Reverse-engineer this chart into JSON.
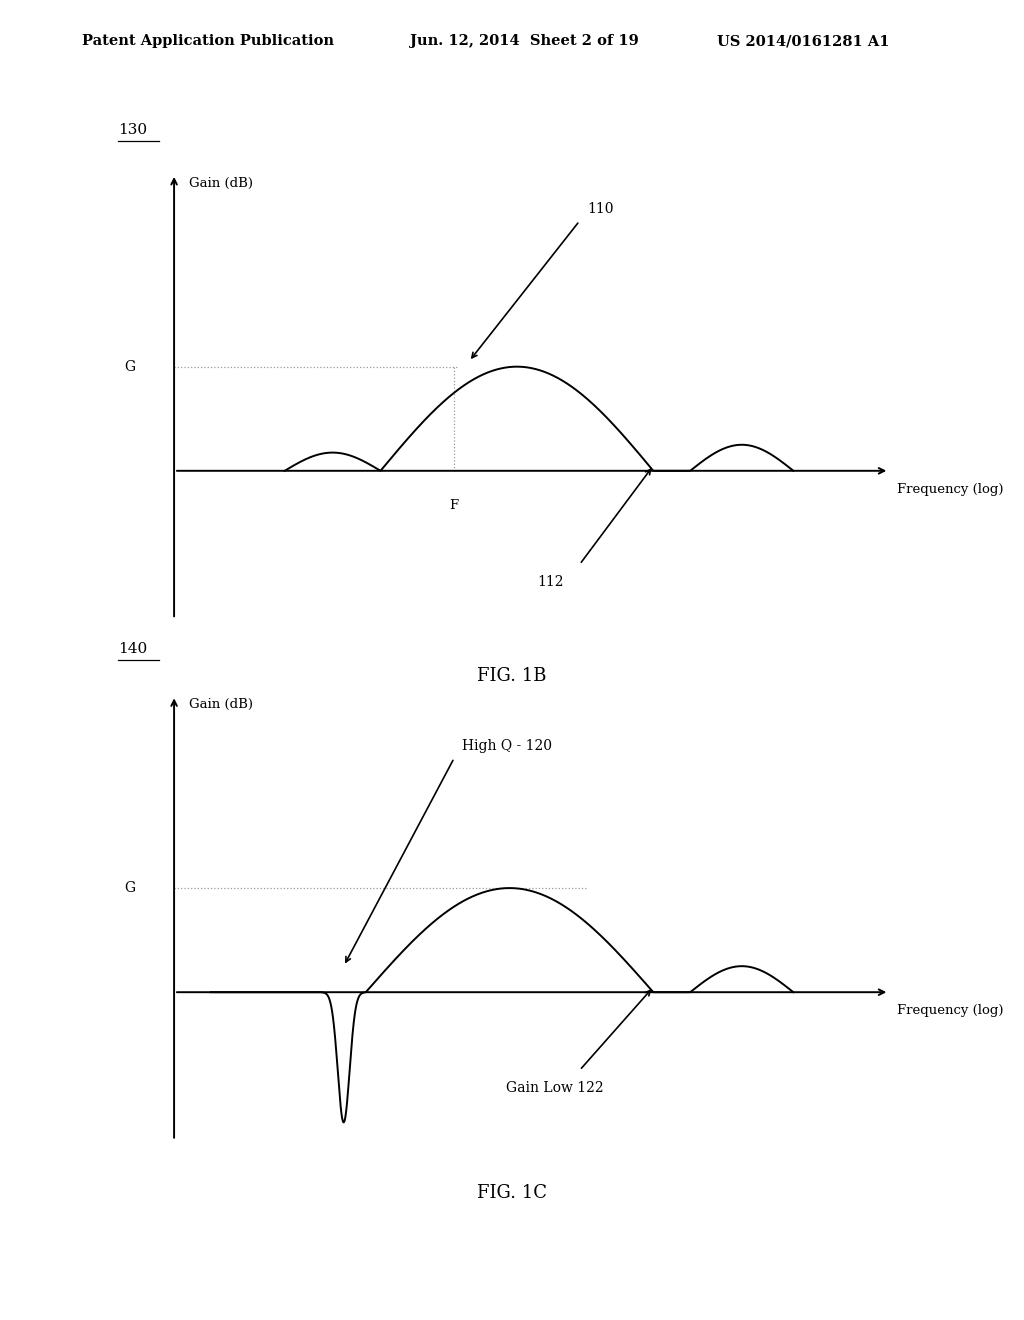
{
  "background_color": "#ffffff",
  "header_left": "Patent Application Publication",
  "header_mid": "Jun. 12, 2014  Sheet 2 of 19",
  "header_right": "US 2014/0161281 A1",
  "header_fontsize": 10.5,
  "fig1b_label": "130",
  "fig1b_caption": "FIG. 1B",
  "fig1c_label": "140",
  "fig1c_caption": "FIG. 1C",
  "ylabel": "Gain (dB)",
  "xlabel": "Frequency (log)",
  "G_label": "G",
  "F_label": "F",
  "label_110": "110",
  "label_112": "112",
  "label_120": "High Q - 120",
  "label_122": "Gain Low 122",
  "line_color": "#000000",
  "dotted_color": "#999999",
  "axis_color": "#000000",
  "fig_width": 10.24,
  "fig_height": 13.2
}
